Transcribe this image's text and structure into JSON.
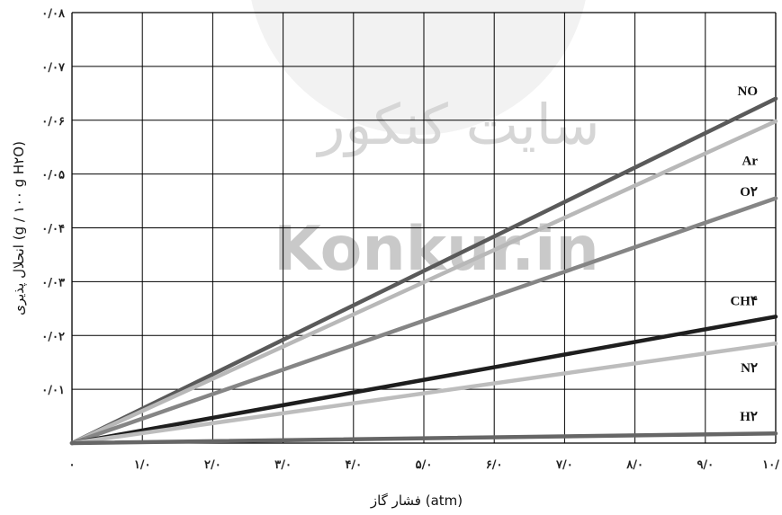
{
  "watermark": {
    "persian": "سایت کنکور",
    "latin": "Konkur.in"
  },
  "chart_data": {
    "type": "line",
    "xlabel": "فشار گاز (atm)",
    "ylabel": "انحلال پذیری (g / ۱۰۰ g H۲O)",
    "xlim": [
      0,
      10
    ],
    "ylim": [
      0,
      0.08
    ],
    "grid": true,
    "x_tick_labels": [
      "۰",
      "۱/۰",
      "۲/۰",
      "۳/۰",
      "۴/۰",
      "۵/۰",
      "۶/۰",
      "۷/۰",
      "۸/۰",
      "۹/۰",
      "۱۰/"
    ],
    "y_tick_labels": [
      "۰/۰۱",
      "۰/۰۲",
      "۰/۰۳",
      "۰/۰۴",
      "۰/۰۵",
      "۰/۰۶",
      "۰/۰۷",
      "۰/۰۸"
    ],
    "series": [
      {
        "name": "NO",
        "label": "NO",
        "x": [
          0,
          10
        ],
        "y": [
          0,
          0.064
        ],
        "color": "#5a5a5a",
        "label_y": 0.0655
      },
      {
        "name": "Ar",
        "label": "Ar",
        "x": [
          0,
          10
        ],
        "y": [
          0,
          0.0598
        ],
        "color": "#b8b8b8",
        "label_y": 0.0525
      },
      {
        "name": "O2",
        "label": "O۲",
        "x": [
          0,
          10
        ],
        "y": [
          0,
          0.0455
        ],
        "color": "#858585",
        "label_y": 0.0468
      },
      {
        "name": "CH4",
        "label": "CH۴",
        "x": [
          0,
          10
        ],
        "y": [
          0,
          0.0235
        ],
        "color": "#1e1e1e",
        "label_y": 0.0265
      },
      {
        "name": "N2",
        "label": "N۲",
        "x": [
          0,
          10
        ],
        "y": [
          0,
          0.0185
        ],
        "color": "#bdbdbd",
        "label_y": 0.014
      },
      {
        "name": "H2",
        "label": "H۲",
        "x": [
          0,
          10
        ],
        "y": [
          0,
          0.0018
        ],
        "color": "#666666",
        "label_y": 0.005
      }
    ]
  }
}
